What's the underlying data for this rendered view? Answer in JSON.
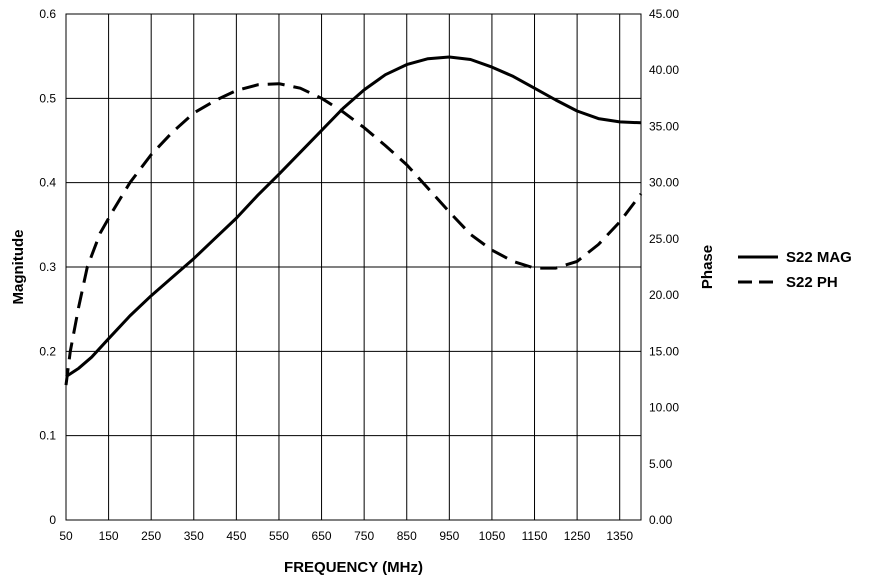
{
  "chart_data": {
    "type": "line",
    "title": "",
    "xlabel": "FREQUENCY (MHz)",
    "ylabel": "Magnitude",
    "y2label": "Phase",
    "xlim": [
      50,
      1400
    ],
    "ylim": [
      0,
      0.6
    ],
    "y2lim": [
      0,
      45
    ],
    "x_ticks": [
      50,
      150,
      250,
      350,
      450,
      550,
      650,
      750,
      850,
      950,
      1050,
      1150,
      1250,
      1350
    ],
    "x_tick_labels": [
      "50",
      "150",
      "250",
      "350",
      "450",
      "550",
      "650",
      "750",
      "850",
      "950",
      "1050",
      "1150",
      "1250",
      "1350"
    ],
    "y_ticks": [
      0,
      0.1,
      0.2,
      0.3,
      0.4,
      0.5,
      0.6
    ],
    "y_tick_labels": [
      "0",
      "0.1",
      "0.2",
      "0.3",
      "0.4",
      "0.5",
      "0.6"
    ],
    "y2_ticks": [
      0,
      5,
      10,
      15,
      20,
      25,
      30,
      35,
      40,
      45
    ],
    "y2_tick_labels": [
      "0.00",
      "5.00",
      "10.00",
      "15.00",
      "20.00",
      "25.00",
      "30.00",
      "35.00",
      "40.00",
      "45.00"
    ],
    "grid": true,
    "legend_position": "right",
    "series": [
      {
        "name": "S22 MAG",
        "axis": "left",
        "style": "solid",
        "color": "#000000",
        "x": [
          50,
          80,
          110,
          150,
          200,
          250,
          300,
          350,
          400,
          450,
          500,
          550,
          600,
          650,
          700,
          750,
          800,
          850,
          900,
          950,
          1000,
          1050,
          1100,
          1150,
          1200,
          1250,
          1300,
          1350,
          1400
        ],
        "y": [
          0.17,
          0.18,
          0.193,
          0.215,
          0.242,
          0.266,
          0.288,
          0.31,
          0.334,
          0.358,
          0.385,
          0.41,
          0.436,
          0.462,
          0.488,
          0.51,
          0.528,
          0.54,
          0.547,
          0.549,
          0.546,
          0.537,
          0.526,
          0.512,
          0.498,
          0.485,
          0.476,
          0.472,
          0.471
        ]
      },
      {
        "name": "S22 PH",
        "axis": "right",
        "style": "dashed",
        "color": "#000000",
        "x": [
          50,
          60,
          80,
          100,
          130,
          160,
          200,
          250,
          300,
          350,
          400,
          450,
          500,
          550,
          600,
          650,
          700,
          750,
          800,
          850,
          900,
          950,
          1000,
          1050,
          1100,
          1150,
          1200,
          1250,
          1300,
          1350,
          1400
        ],
        "y": [
          12.0,
          15.0,
          19.0,
          22.5,
          25.5,
          27.5,
          30.0,
          32.5,
          34.5,
          36.2,
          37.3,
          38.2,
          38.7,
          38.8,
          38.4,
          37.5,
          36.3,
          34.9,
          33.3,
          31.6,
          29.5,
          27.4,
          25.4,
          24.0,
          23.0,
          22.4,
          22.4,
          23.0,
          24.5,
          26.5,
          29.0
        ]
      }
    ]
  }
}
